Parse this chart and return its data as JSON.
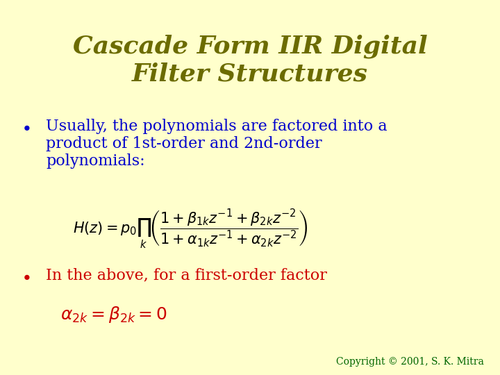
{
  "title": "Cascade Form IIR Digital\nFilter Structures",
  "title_color": "#6B6B00",
  "background_color": "#FFFFCC",
  "bullet1_text": "Usually, the polynomials are factored into a\nproduct of 1st-order and 2nd-order\npolynomials:",
  "bullet1_color": "#0000CC",
  "bullet2_text": "In the above, for a first-order factor",
  "bullet2_color": "#CC0000",
  "formula1": "H(z) = p_0 \\prod_{k} \\left( \\dfrac{1 + \\beta_{1k}z^{-1} + \\beta_{2k}z^{-2}}{1 + \\alpha_{1k}z^{-1} + \\alpha_{2k}z^{-2}} \\right)",
  "formula1_color": "#000000",
  "formula2": "\\alpha_{2k} = \\beta_{2k} = 0",
  "formula2_color": "#CC0000",
  "copyright_text": "Copyright © 2001, S. K. Mitra",
  "copyright_color": "#006600",
  "bullet_symbol_color1": "#0000CC",
  "bullet_symbol_color2": "#CC0000"
}
